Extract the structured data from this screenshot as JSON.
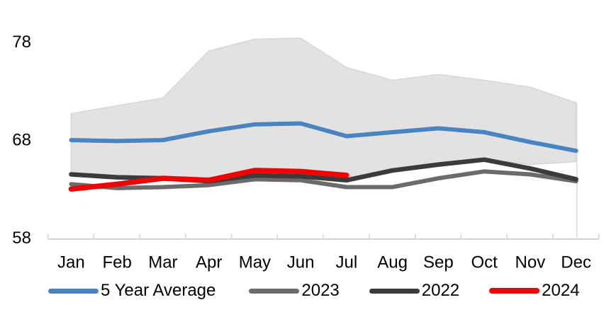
{
  "chart_data": {
    "type": "line",
    "title": "",
    "categories": [
      "Jan",
      "Feb",
      "Mar",
      "Apr",
      "May",
      "Jun",
      "Jul",
      "Aug",
      "Sep",
      "Oct",
      "Nov",
      "Dec"
    ],
    "y_axis": {
      "tick_labels": [
        "78",
        "68",
        "58"
      ],
      "tick_values": [
        78,
        68,
        58
      ],
      "ylim": [
        58,
        79
      ],
      "grid": false
    },
    "range_band": {
      "top": [
        70.7,
        71.5,
        72.3,
        77.1,
        78.3,
        78.4,
        75.4,
        74.1,
        74.7,
        74.1,
        73.4,
        71.8
      ],
      "bottom": [
        64.7,
        64.3,
        64.2,
        63.9,
        64.5,
        64.4,
        63.9,
        64.8,
        65.5,
        66.1,
        65.5,
        65.8
      ],
      "fill": "#e2e2e2",
      "edge_color": "#d6d6d6"
    },
    "series": [
      {
        "name": "5 Year Average",
        "color": "#4a84c0",
        "line_width": 6,
        "values": [
          68.0,
          67.9,
          68.0,
          68.9,
          69.6,
          69.7,
          68.4,
          68.8,
          69.2,
          68.8,
          67.8,
          66.9
        ]
      },
      {
        "name": "2023",
        "color": "#6b6b6b",
        "line_width": 6,
        "values": [
          63.5,
          63.1,
          63.2,
          63.4,
          64.0,
          63.9,
          63.2,
          63.2,
          64.1,
          64.8,
          64.5,
          63.8
        ]
      },
      {
        "name": "2022",
        "color": "#3b3b3b",
        "line_width": 6.5,
        "values": [
          64.5,
          64.2,
          64.1,
          63.8,
          64.4,
          64.3,
          63.9,
          64.9,
          65.5,
          66.0,
          65.1,
          64.0
        ]
      },
      {
        "name": "2024",
        "color": "#ee0606",
        "line_width": 7.5,
        "values": [
          63.0,
          63.5,
          64.1,
          63.9,
          64.9,
          64.8,
          64.4,
          null,
          null,
          null,
          null,
          null
        ]
      }
    ],
    "legend_position": "bottom",
    "axis_color": "#d4d4d4",
    "end_gridline_color": "#dcdcdc",
    "text_color": "#000000"
  }
}
